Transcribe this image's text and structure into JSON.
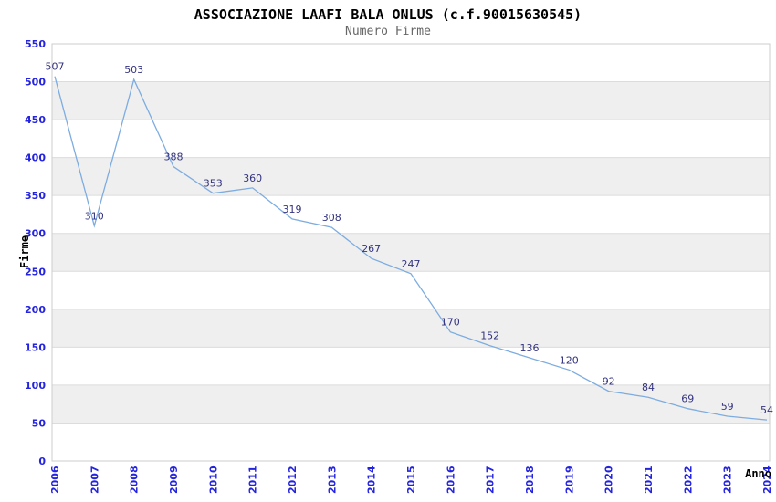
{
  "chart_data": {
    "type": "line",
    "title": "ASSOCIAZIONE LAAFI BALA ONLUS (c.f.90015630545)",
    "subtitle": "Numero Firme",
    "xlabel": "Anno",
    "ylabel": "Firme",
    "categories": [
      "2006",
      "2007",
      "2008",
      "2009",
      "2010",
      "2011",
      "2012",
      "2013",
      "2014",
      "2015",
      "2016",
      "2017",
      "2018",
      "2019",
      "2020",
      "2021",
      "2022",
      "2023",
      "2024"
    ],
    "values": [
      507,
      310,
      503,
      388,
      353,
      360,
      319,
      308,
      267,
      247,
      170,
      152,
      136,
      120,
      92,
      84,
      69,
      59,
      54
    ],
    "ylim": [
      0,
      550
    ],
    "ytick_step": 50,
    "grid": "horizontal-bands",
    "legend": "none",
    "point_labels_visible": true,
    "colors": {
      "line": "#7dace1",
      "tick_label": "#2323e0",
      "data_label": "#333380",
      "band": "#efefef",
      "gridline": "#dcdcdc",
      "border": "#cccccc",
      "title": "#000000",
      "subtitle": "#666666",
      "axis_title": "#000000"
    }
  }
}
